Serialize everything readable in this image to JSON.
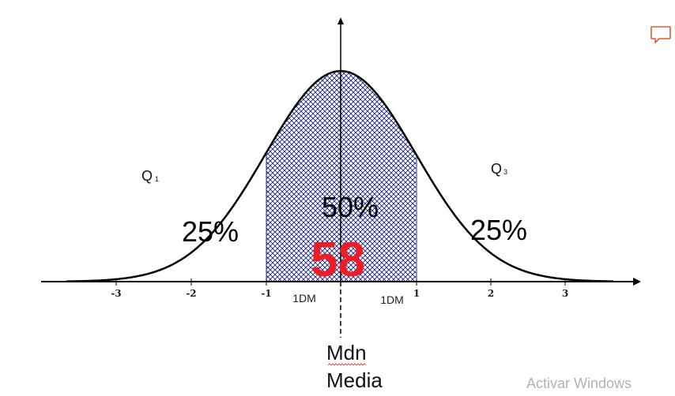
{
  "diagram": {
    "x_ticks": [
      "-3",
      "-2",
      "-1",
      "1",
      "2",
      "3"
    ],
    "dm_labels": [
      "1DM",
      "1DM"
    ],
    "q1": {
      "main": "Q",
      "sub": "1"
    },
    "q3": {
      "main": "Q",
      "sub": "3"
    },
    "left_tail_percent": "25%",
    "center_percent": "50%",
    "right_tail_percent": "25%",
    "center_value": "58",
    "mdn_label": "Mdn",
    "media_label": "Media",
    "shaded_range": [
      -1,
      1
    ],
    "colors": {
      "shade": "#1a237e",
      "highlight_number": "#ee1c25",
      "curve": "#000000"
    }
  },
  "overlay": {
    "comment_icon": "speech-bubble-icon",
    "comment_color": "#e8572f",
    "watermark": "Activar Windows"
  }
}
